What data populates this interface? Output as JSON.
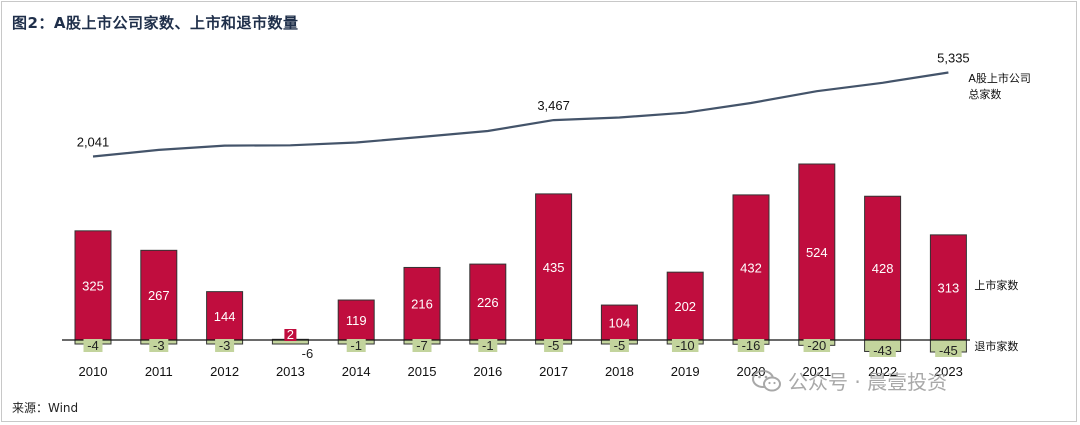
{
  "title": "图2：A股上市公司家数、上市和退市数量",
  "source": "来源：Wind",
  "watermark": "公众号 · 晨壹投资",
  "colors": {
    "listings_fill": "#c00d3e",
    "delistings_fill": "#c3d49d",
    "line": "#44546a"
  },
  "chart_data": {
    "type": "bar",
    "categories": [
      "2010",
      "2011",
      "2012",
      "2013",
      "2014",
      "2015",
      "2016",
      "2017",
      "2018",
      "2019",
      "2020",
      "2021",
      "2022",
      "2023"
    ],
    "series": [
      {
        "name": "上市家数",
        "kind": "bar",
        "values": [
          325,
          267,
          144,
          2,
          119,
          216,
          226,
          435,
          104,
          202,
          432,
          524,
          428,
          313
        ]
      },
      {
        "name": "退市家数",
        "kind": "bar",
        "values": [
          -4,
          -3,
          -3,
          -6,
          -1,
          -7,
          -1,
          -5,
          -5,
          -10,
          -16,
          -20,
          -43,
          -45
        ]
      },
      {
        "name": "A股上市公司总家数",
        "kind": "line",
        "values": [
          2041,
          2300,
          2470,
          2480,
          2590,
          2810,
          3040,
          3467,
          3570,
          3760,
          4140,
          4600,
          4930,
          5335
        ]
      }
    ],
    "point_labels": {
      "0": "2,041",
      "7": "3,467",
      "13": "5,335"
    },
    "line_series_label": [
      "A股上市公司",
      "总家数"
    ],
    "legend": "right"
  }
}
